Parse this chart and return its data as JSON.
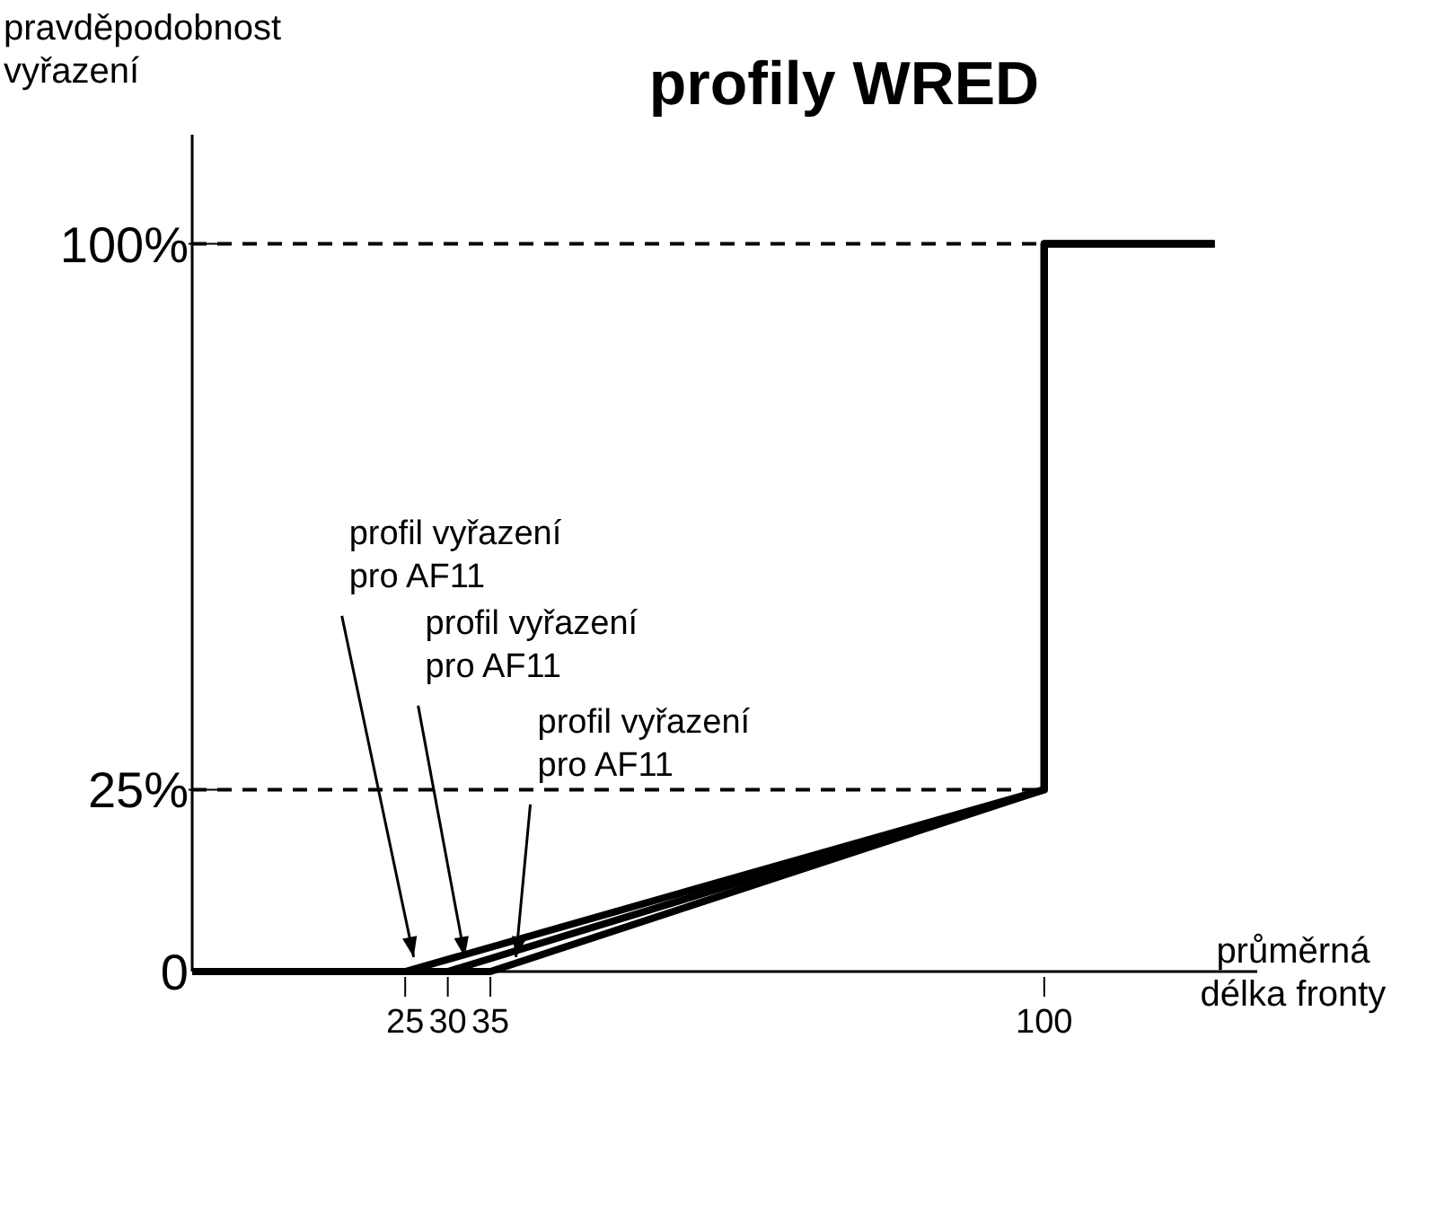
{
  "chart_data": {
    "type": "line",
    "title": "profily WRED",
    "xlabel": "průměrná\ndélka fronty",
    "ylabel": "pravděpodobnost\nvyřazení",
    "xlim": [
      0,
      125
    ],
    "ylim": [
      0,
      115
    ],
    "xticks": [
      25,
      30,
      35,
      100
    ],
    "yticks": [
      0,
      {
        "value": 25,
        "label": "25%"
      },
      {
        "value": 100,
        "label": "100%"
      }
    ],
    "series": [
      {
        "color": "#000000",
        "x": [
          0,
          25,
          100,
          100,
          120
        ],
        "values": [
          0,
          0,
          25,
          100,
          100
        ]
      },
      {
        "color": "#000000",
        "x": [
          0,
          30,
          100,
          100,
          120
        ],
        "values": [
          0,
          0,
          25,
          100,
          100
        ]
      },
      {
        "color": "#000000",
        "x": [
          0,
          35,
          100,
          100,
          120
        ],
        "values": [
          0,
          0,
          25,
          100,
          100
        ]
      }
    ],
    "ref_lines": [
      {
        "axis": "y",
        "value": 25,
        "line_style": "dashed"
      },
      {
        "axis": "y",
        "value": 100,
        "line_style": "dashed"
      }
    ],
    "annotations": [
      {
        "text": "profil vyřazení\npro AF11",
        "x": 26,
        "y": 1
      },
      {
        "text": "profil vyřazení\npro AF11",
        "x": 32,
        "y": 1
      },
      {
        "text": "profil vyřazení\npro AF11",
        "x": 38,
        "y": 1
      }
    ],
    "grid": false,
    "marker": "none",
    "line_style": "solid"
  }
}
